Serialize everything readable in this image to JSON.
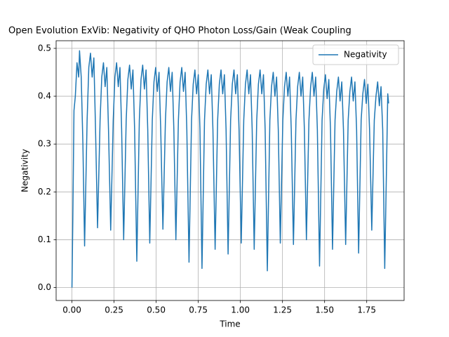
{
  "chart_data": {
    "type": "line",
    "title": "Open Evolution ExVib: Negativity of QHO Photon Loss/Gain (Weak Coupling",
    "xlabel": "Time",
    "ylabel": "Negativity",
    "x": [
      0,
      0.005,
      0.012,
      0.02,
      0.03,
      0.04,
      0.045,
      0.055,
      0.065,
      0.075,
      0.09,
      0.1,
      0.11,
      0.12,
      0.13,
      0.14,
      0.152,
      0.167,
      0.177,
      0.187,
      0.197,
      0.207,
      0.217,
      0.23,
      0.245,
      0.255,
      0.265,
      0.275,
      0.285,
      0.295,
      0.307,
      0.322,
      0.332,
      0.342,
      0.352,
      0.362,
      0.372,
      0.385,
      0.4,
      0.41,
      0.42,
      0.43,
      0.44,
      0.45,
      0.462,
      0.477,
      0.487,
      0.497,
      0.507,
      0.517,
      0.527,
      0.54,
      0.555,
      0.565,
      0.575,
      0.585,
      0.595,
      0.605,
      0.617,
      0.632,
      0.642,
      0.652,
      0.662,
      0.672,
      0.682,
      0.695,
      0.71,
      0.72,
      0.73,
      0.74,
      0.75,
      0.76,
      0.772,
      0.787,
      0.797,
      0.807,
      0.817,
      0.827,
      0.837,
      0.85,
      0.865,
      0.875,
      0.885,
      0.895,
      0.905,
      0.915,
      0.927,
      0.942,
      0.952,
      0.962,
      0.972,
      0.982,
      0.992,
      1.005,
      1.02,
      1.03,
      1.04,
      1.05,
      1.06,
      1.07,
      1.082,
      1.097,
      1.107,
      1.117,
      1.127,
      1.137,
      1.147,
      1.16,
      1.175,
      1.185,
      1.195,
      1.205,
      1.215,
      1.225,
      1.237,
      1.252,
      1.262,
      1.272,
      1.282,
      1.292,
      1.302,
      1.315,
      1.33,
      1.34,
      1.35,
      1.36,
      1.37,
      1.38,
      1.392,
      1.407,
      1.417,
      1.427,
      1.437,
      1.447,
      1.457,
      1.47,
      1.485,
      1.495,
      1.505,
      1.515,
      1.525,
      1.535,
      1.547,
      1.562,
      1.572,
      1.582,
      1.592,
      1.602,
      1.612,
      1.625,
      1.64,
      1.65,
      1.66,
      1.67,
      1.68,
      1.69,
      1.702,
      1.717,
      1.727,
      1.737,
      1.747,
      1.757,
      1.767,
      1.78,
      1.795,
      1.805,
      1.815,
      1.825,
      1.835,
      1.845,
      1.857,
      1.87,
      1.875,
      1.88
    ],
    "series": [
      {
        "name": "Negativity",
        "color": "#1f77b4",
        "values": [
          0,
          0.14,
          0.37,
          0.4,
          0.47,
          0.44,
          0.495,
          0.44,
          0.3,
          0.087,
          0.35,
          0.46,
          0.49,
          0.44,
          0.48,
          0.33,
          0.125,
          0.35,
          0.44,
          0.47,
          0.42,
          0.46,
          0.33,
          0.12,
          0.35,
          0.44,
          0.47,
          0.42,
          0.46,
          0.33,
          0.1,
          0.35,
          0.435,
          0.465,
          0.415,
          0.455,
          0.33,
          0.055,
          0.35,
          0.435,
          0.465,
          0.415,
          0.455,
          0.33,
          0.093,
          0.35,
          0.43,
          0.46,
          0.41,
          0.45,
          0.33,
          0.122,
          0.35,
          0.43,
          0.46,
          0.41,
          0.45,
          0.33,
          0.1,
          0.35,
          0.43,
          0.46,
          0.41,
          0.45,
          0.33,
          0.053,
          0.35,
          0.425,
          0.455,
          0.405,
          0.445,
          0.33,
          0.04,
          0.35,
          0.425,
          0.455,
          0.405,
          0.445,
          0.33,
          0.08,
          0.35,
          0.425,
          0.455,
          0.405,
          0.445,
          0.33,
          0.07,
          0.35,
          0.425,
          0.455,
          0.405,
          0.445,
          0.33,
          0.093,
          0.35,
          0.425,
          0.455,
          0.405,
          0.445,
          0.33,
          0.08,
          0.35,
          0.425,
          0.455,
          0.405,
          0.445,
          0.33,
          0.035,
          0.35,
          0.42,
          0.45,
          0.4,
          0.44,
          0.33,
          0.093,
          0.35,
          0.42,
          0.45,
          0.4,
          0.44,
          0.33,
          0.09,
          0.35,
          0.42,
          0.45,
          0.4,
          0.44,
          0.33,
          0.1,
          0.35,
          0.42,
          0.45,
          0.4,
          0.44,
          0.33,
          0.045,
          0.35,
          0.415,
          0.445,
          0.395,
          0.435,
          0.33,
          0.08,
          0.35,
          0.41,
          0.44,
          0.39,
          0.43,
          0.33,
          0.09,
          0.35,
          0.41,
          0.44,
          0.39,
          0.43,
          0.33,
          0.072,
          0.35,
          0.405,
          0.435,
          0.385,
          0.425,
          0.33,
          0.12,
          0.35,
          0.4,
          0.43,
          0.38,
          0.42,
          0.33,
          0.04,
          0.3,
          0.405,
          0.385
        ]
      }
    ],
    "xlim": [
      -0.094,
      1.972
    ],
    "ylim": [
      -0.027,
      0.516
    ],
    "xticks": [
      {
        "value": 0,
        "label": "0.00"
      },
      0.25,
      {
        "value": 0.5,
        "label": "0.50"
      },
      0.75,
      {
        "value": 1,
        "label": "1.00"
      },
      1.25,
      {
        "value": 1.5,
        "label": "1.50"
      },
      1.75
    ],
    "yticks": [
      {
        "value": 0,
        "label": "0.0"
      },
      0.1,
      0.2,
      0.3,
      0.4,
      0.5
    ],
    "grid": true,
    "legend": "upper right"
  }
}
